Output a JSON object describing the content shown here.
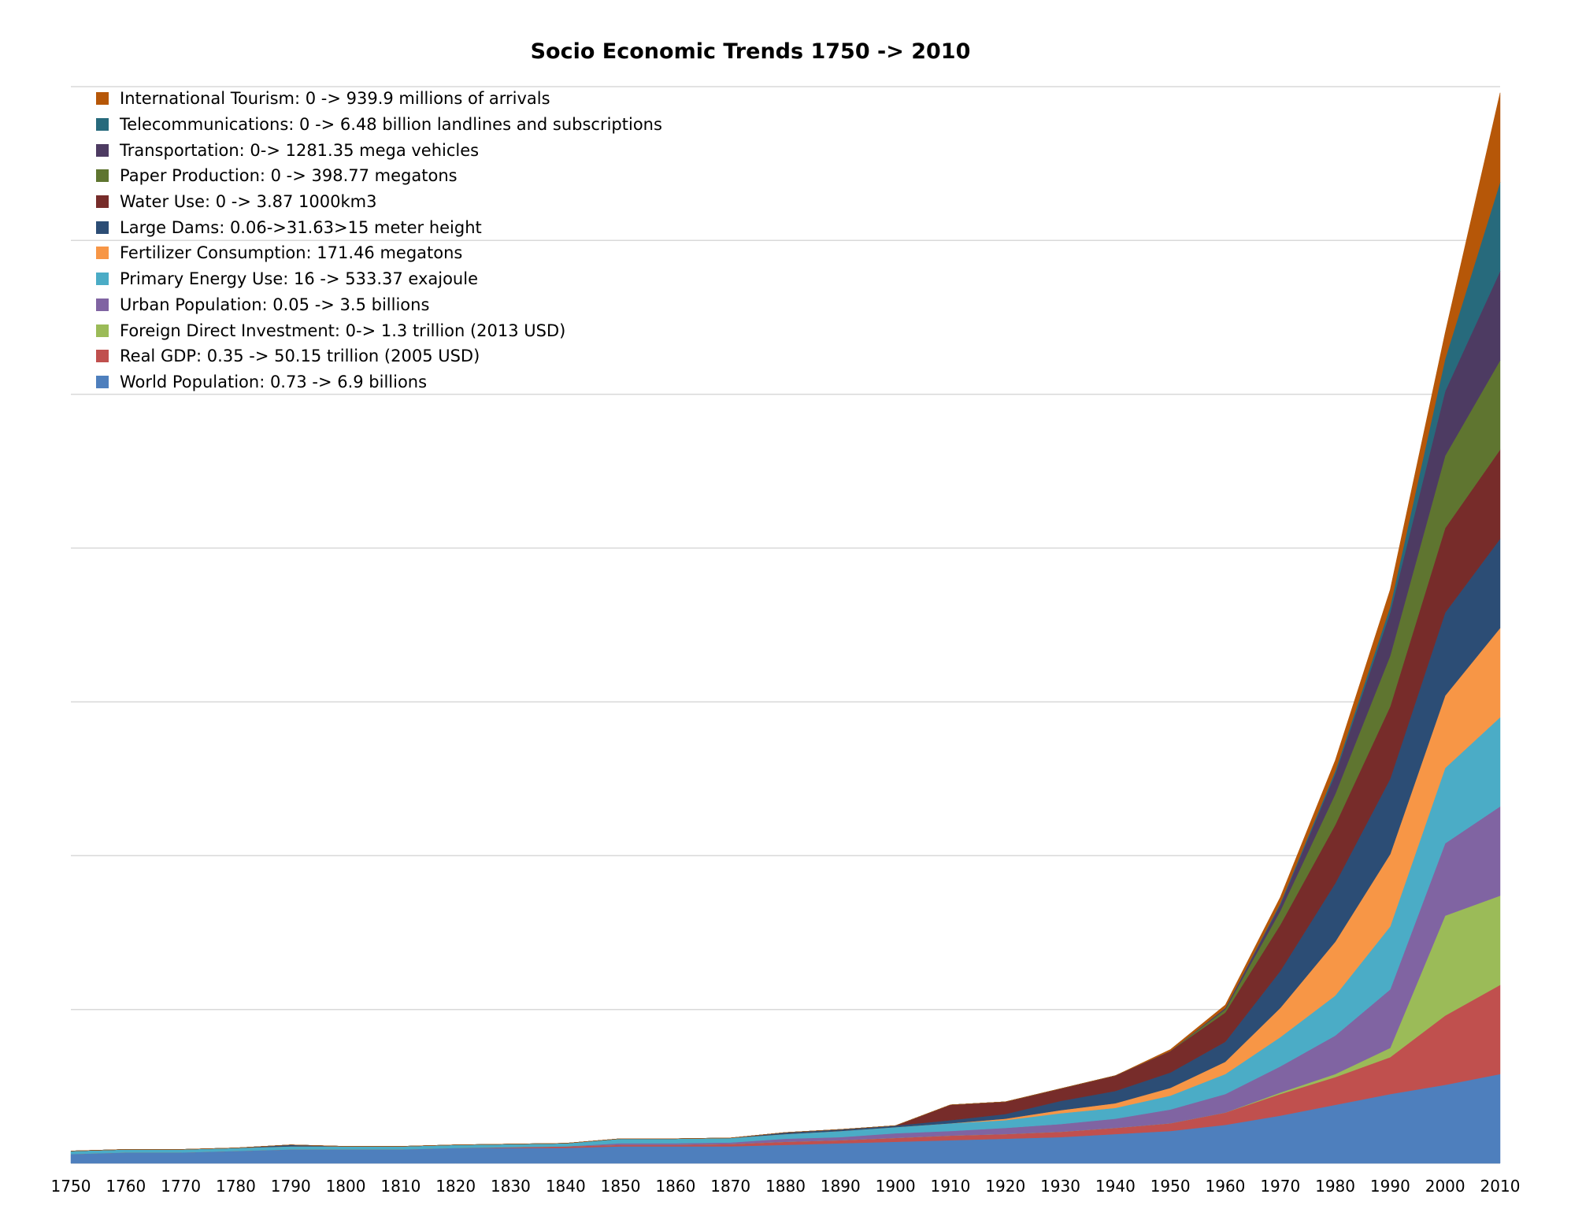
{
  "chart_data": {
    "type": "area",
    "stacked": true,
    "title": "Socio Economic Trends 1750 -> 2010",
    "xlabel": "",
    "ylabel": "",
    "x": [
      1750,
      1760,
      1770,
      1780,
      1790,
      1800,
      1810,
      1820,
      1830,
      1840,
      1850,
      1860,
      1870,
      1880,
      1890,
      1900,
      1910,
      1920,
      1930,
      1940,
      1950,
      1960,
      1970,
      1980,
      1990,
      2000,
      2010
    ],
    "x_tick_labels": [
      "1750",
      "1760",
      "1770",
      "1780",
      "1790",
      "1800",
      "1810",
      "1820",
      "1830",
      "1840",
      "1850",
      "1860",
      "1870",
      "1880",
      "1890",
      "1900",
      "1910",
      "1920",
      "1930",
      "1940",
      "1950",
      "1960",
      "1970",
      "1980",
      "1990",
      "2000",
      "2010"
    ],
    "xlim": [
      1750,
      2010
    ],
    "ylim": [
      0,
      7
    ],
    "grid": true,
    "y_tick_labels_shown": false,
    "legend_position": "top-left",
    "series": [
      {
        "name": "World Population: 0.73 -> 6.9 billions",
        "color": "#4e7fbd",
        "values": [
          0.06,
          0.07,
          0.07,
          0.08,
          0.09,
          0.09,
          0.09,
          0.1,
          0.1,
          0.1,
          0.11,
          0.11,
          0.11,
          0.12,
          0.13,
          0.14,
          0.15,
          0.16,
          0.17,
          0.19,
          0.21,
          0.25,
          0.31,
          0.38,
          0.45,
          0.51,
          0.58
        ]
      },
      {
        "name": "Real GDP: 0.35 -> 50.15 trillion (2005 USD)",
        "color": "#c0504e",
        "values": [
          0.0,
          0.0,
          0.0,
          0.0,
          0.0,
          0.0,
          0.0,
          0.0,
          0.005,
          0.01,
          0.01,
          0.01,
          0.015,
          0.02,
          0.02,
          0.025,
          0.03,
          0.03,
          0.035,
          0.04,
          0.05,
          0.08,
          0.14,
          0.18,
          0.24,
          0.45,
          0.58
        ]
      },
      {
        "name": "Foreign Direct Investment: 0-> 1.3 trillion (2013 USD)",
        "color": "#9bbb58",
        "values": [
          0,
          0,
          0,
          0,
          0,
          0,
          0,
          0,
          0,
          0,
          0,
          0,
          0,
          0,
          0,
          0,
          0,
          0,
          0,
          0,
          0,
          0,
          0.01,
          0.02,
          0.06,
          0.65,
          0.58
        ]
      },
      {
        "name": "Urban Population: 0.05 -> 3.5 billions",
        "color": "#8064a2",
        "values": [
          0.0,
          0.0,
          0.0,
          0.0,
          0.0,
          0.0,
          0.0,
          0.0,
          0.0,
          0.0,
          0.01,
          0.01,
          0.01,
          0.02,
          0.02,
          0.03,
          0.03,
          0.04,
          0.05,
          0.06,
          0.09,
          0.12,
          0.17,
          0.25,
          0.38,
          0.47,
          0.58
        ]
      },
      {
        "name": "Primary Energy Use: 16 -> 533.37 exajoule",
        "color": "#4bacc6",
        "values": [
          0.02,
          0.02,
          0.02,
          0.02,
          0.02,
          0.02,
          0.02,
          0.02,
          0.02,
          0.02,
          0.03,
          0.03,
          0.03,
          0.03,
          0.04,
          0.04,
          0.05,
          0.05,
          0.07,
          0.07,
          0.09,
          0.13,
          0.19,
          0.26,
          0.41,
          0.49,
          0.58
        ]
      },
      {
        "name": "Fertilizer Consumption: 171.46 megatons",
        "color": "#f79646",
        "values": [
          0,
          0,
          0,
          0,
          0,
          0,
          0,
          0,
          0,
          0,
          0,
          0,
          0,
          0,
          0,
          0,
          0,
          0.01,
          0.02,
          0.03,
          0.05,
          0.08,
          0.19,
          0.35,
          0.47,
          0.47,
          0.58
        ]
      },
      {
        "name": "Large Dams: 0.06->31.63>15 meter height",
        "color": "#2c4d75",
        "values": [
          0.0,
          0.0,
          0.0,
          0.0,
          0.01,
          0.0,
          0.0,
          0.0,
          0.0,
          0.0,
          0.0,
          0.0,
          0.0,
          0.01,
          0.01,
          0.01,
          0.02,
          0.03,
          0.06,
          0.08,
          0.1,
          0.13,
          0.24,
          0.38,
          0.49,
          0.54,
          0.58
        ]
      },
      {
        "name": "Water Use: 0 -> 3.87 1000km3",
        "color": "#772c2a",
        "values": [
          0,
          0,
          0,
          0,
          0,
          0,
          0,
          0,
          0,
          0,
          0,
          0,
          0,
          0,
          0,
          0,
          0.1,
          0.08,
          0.08,
          0.1,
          0.14,
          0.19,
          0.3,
          0.38,
          0.47,
          0.55,
          0.58
        ]
      },
      {
        "name": "Paper Production: 0 -> 398.77 megatons",
        "color": "#5f7530",
        "values": [
          0,
          0,
          0,
          0,
          0,
          0,
          0,
          0,
          0,
          0,
          0,
          0,
          0,
          0,
          0,
          0,
          0,
          0,
          0,
          0,
          0,
          0.02,
          0.09,
          0.2,
          0.33,
          0.47,
          0.58
        ]
      },
      {
        "name": "Transportation: 0-> 1281.35 mega vehicles",
        "color": "#4d3b62",
        "values": [
          0,
          0,
          0,
          0,
          0,
          0,
          0,
          0,
          0,
          0,
          0,
          0,
          0,
          0,
          0,
          0,
          0,
          0,
          0,
          0,
          0,
          0.01,
          0.04,
          0.13,
          0.28,
          0.42,
          0.58
        ]
      },
      {
        "name": "Telecommunications: 0 -> 6.48 billion landlines and subscriptions",
        "color": "#276a7c",
        "values": [
          0,
          0,
          0,
          0,
          0,
          0,
          0,
          0,
          0,
          0,
          0,
          0,
          0,
          0,
          0,
          0,
          0,
          0,
          0,
          0,
          0,
          0,
          0.01,
          0.02,
          0.04,
          0.21,
          0.58
        ]
      },
      {
        "name": "International Tourism: 0 -> 939.9 millions of arrivals",
        "color": "#b65708",
        "values": [
          0,
          0,
          0,
          0,
          0,
          0,
          0,
          0,
          0,
          0,
          0,
          0,
          0,
          0,
          0,
          0,
          0,
          0,
          0,
          0,
          0.01,
          0.02,
          0.04,
          0.07,
          0.11,
          0.17,
          0.58
        ]
      }
    ]
  }
}
